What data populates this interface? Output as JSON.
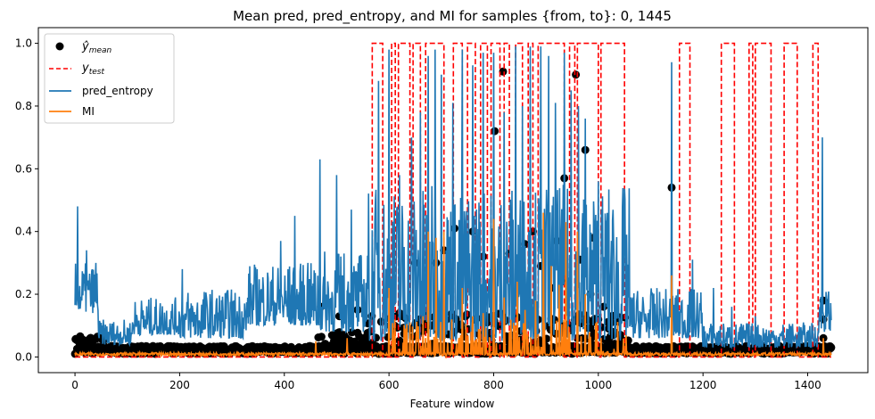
{
  "chart_data": {
    "type": "line",
    "title": "Mean pred, pred_entropy, and MI for samples {from, to}: 0, 1445",
    "xlabel": "Feature window",
    "ylabel": "",
    "xlim": [
      -70,
      1515
    ],
    "ylim": [
      -0.05,
      1.05
    ],
    "xticks": [
      0,
      200,
      400,
      600,
      800,
      1000,
      1200,
      1400
    ],
    "yticks": [
      0.0,
      0.2,
      0.4,
      0.6,
      0.8,
      1.0
    ],
    "grid": false,
    "legend_position": "top-left",
    "legend": [
      {
        "key": "y_mean",
        "base": "ŷ",
        "sub": "mean",
        "kind": "marker",
        "color": "#000000"
      },
      {
        "key": "y_test",
        "base": "y",
        "sub": "test",
        "kind": "dashed",
        "color": "#ff0000"
      },
      {
        "key": "pred_entropy",
        "label": "pred_entropy",
        "kind": "line",
        "color": "#1f77b4"
      },
      {
        "key": "mi",
        "label": "MI",
        "kind": "line",
        "color": "#ff7f0e"
      }
    ],
    "series": {
      "y_test_intervals": [
        [
          568,
          588
        ],
        [
          605,
          612
        ],
        [
          618,
          640
        ],
        [
          646,
          660
        ],
        [
          670,
          705
        ],
        [
          723,
          740
        ],
        [
          750,
          765
        ],
        [
          775,
          788
        ],
        [
          795,
          812
        ],
        [
          820,
          830
        ],
        [
          842,
          855
        ],
        [
          866,
          875
        ],
        [
          885,
          935
        ],
        [
          945,
          955
        ],
        [
          960,
          1000
        ],
        [
          1005,
          1050
        ],
        [
          1155,
          1175
        ],
        [
          1235,
          1260
        ],
        [
          1288,
          1295
        ],
        [
          1300,
          1330
        ],
        [
          1355,
          1380
        ],
        [
          1410,
          1420
        ]
      ],
      "y_mean_highlights": [
        [
          818,
          0.91
        ],
        [
          957,
          0.9
        ],
        [
          802,
          0.72
        ],
        [
          1140,
          0.54
        ],
        [
          935,
          0.57
        ],
        [
          725,
          0.41
        ],
        [
          760,
          0.4
        ],
        [
          830,
          0.33
        ],
        [
          860,
          0.36
        ],
        [
          875,
          0.4
        ],
        [
          920,
          0.37
        ],
        [
          990,
          0.38
        ],
        [
          1430,
          0.18
        ],
        [
          1430,
          0.12
        ],
        [
          1430,
          0.06
        ],
        [
          505,
          0.13
        ],
        [
          540,
          0.15
        ],
        [
          620,
          0.14
        ],
        [
          650,
          0.3
        ],
        [
          690,
          0.3
        ],
        [
          705,
          0.34
        ],
        [
          740,
          0.28
        ],
        [
          780,
          0.32
        ],
        [
          850,
          0.28
        ],
        [
          890,
          0.29
        ],
        [
          910,
          0.22
        ],
        [
          930,
          0.24
        ],
        [
          965,
          0.31
        ],
        [
          975,
          0.66
        ],
        [
          1010,
          0.16
        ],
        [
          1000,
          0.12
        ],
        [
          640,
          0.09
        ],
        [
          470,
          0.16
        ],
        [
          665,
          0.12
        ],
        [
          985,
          0.2
        ],
        [
          1020,
          0.09
        ]
      ],
      "pred_entropy_spikes": [
        [
          5,
          0.48
        ],
        [
          22,
          0.34
        ],
        [
          40,
          0.3
        ],
        [
          205,
          0.28
        ],
        [
          393,
          0.37
        ],
        [
          420,
          0.45
        ],
        [
          445,
          0.3
        ],
        [
          468,
          0.63
        ],
        [
          500,
          0.58
        ],
        [
          528,
          0.47
        ],
        [
          580,
          0.88
        ],
        [
          600,
          0.98
        ],
        [
          620,
          0.58
        ],
        [
          643,
          0.7
        ],
        [
          660,
          0.78
        ],
        [
          675,
          0.96
        ],
        [
          688,
          0.98
        ],
        [
          700,
          0.9
        ],
        [
          722,
          0.81
        ],
        [
          740,
          0.98
        ],
        [
          760,
          0.93
        ],
        [
          780,
          0.97
        ],
        [
          800,
          0.97
        ],
        [
          820,
          0.78
        ],
        [
          842,
          0.99
        ],
        [
          855,
          0.8
        ],
        [
          870,
          0.99
        ],
        [
          890,
          0.99
        ],
        [
          905,
          0.96
        ],
        [
          918,
          0.81
        ],
        [
          935,
          0.97
        ],
        [
          948,
          0.85
        ],
        [
          962,
          0.8
        ],
        [
          975,
          0.76
        ],
        [
          1000,
          0.56
        ],
        [
          1015,
          0.43
        ],
        [
          1025,
          0.37
        ],
        [
          1140,
          0.94
        ],
        [
          1180,
          0.31
        ],
        [
          1220,
          0.22
        ],
        [
          1255,
          0.16
        ],
        [
          1300,
          0.13
        ],
        [
          1360,
          0.09
        ],
        [
          1428,
          0.7
        ]
      ],
      "mi_spikes": [
        [
          460,
          0.05
        ],
        [
          520,
          0.06
        ],
        [
          600,
          0.22
        ],
        [
          640,
          0.11
        ],
        [
          665,
          0.13
        ],
        [
          675,
          0.4
        ],
        [
          690,
          0.38
        ],
        [
          705,
          0.4
        ],
        [
          720,
          0.12
        ],
        [
          740,
          0.22
        ],
        [
          760,
          0.13
        ],
        [
          780,
          0.14
        ],
        [
          800,
          0.44
        ],
        [
          820,
          0.19
        ],
        [
          845,
          0.24
        ],
        [
          860,
          0.15
        ],
        [
          880,
          0.18
        ],
        [
          895,
          0.46
        ],
        [
          910,
          0.29
        ],
        [
          925,
          0.23
        ],
        [
          938,
          0.43
        ],
        [
          960,
          0.4
        ],
        [
          975,
          0.2
        ],
        [
          1005,
          0.06
        ],
        [
          1140,
          0.26
        ],
        [
          1430,
          0.06
        ]
      ]
    }
  }
}
